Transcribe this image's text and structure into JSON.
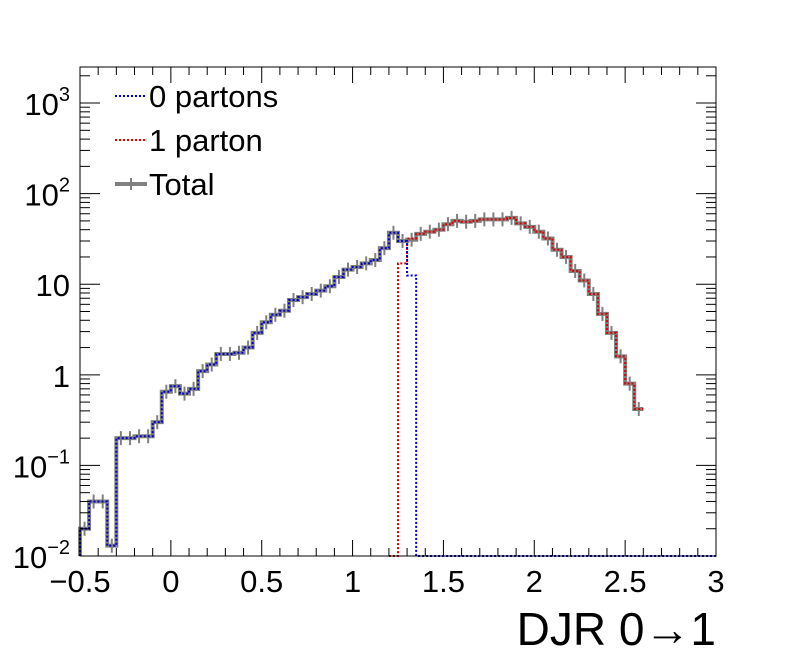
{
  "chart_data": {
    "type": "line",
    "title": "",
    "xlabel": "DJR 0→1",
    "ylabel": "",
    "xlim": [
      -0.5,
      3.0
    ],
    "ylim": [
      0.01,
      2500
    ],
    "yscale": "log",
    "grid": false,
    "legend_position": "top-left",
    "bin_width": 0.05,
    "x_ticks": [
      {
        "value": -0.5,
        "label": "−0.5"
      },
      {
        "value": 0,
        "label": "0"
      },
      {
        "value": 0.5,
        "label": "0.5"
      },
      {
        "value": 1,
        "label": "1"
      },
      {
        "value": 1.5,
        "label": "1.5"
      },
      {
        "value": 2,
        "label": "2"
      },
      {
        "value": 2.5,
        "label": "2.5"
      },
      {
        "value": 3,
        "label": "3"
      }
    ],
    "y_ticks": [
      {
        "value": 0.01,
        "base": "10",
        "exp": "−2"
      },
      {
        "value": 0.1,
        "base": "10",
        "exp": "−1"
      },
      {
        "value": 1,
        "base": "1",
        "exp": ""
      },
      {
        "value": 10,
        "base": "10",
        "exp": ""
      },
      {
        "value": 100,
        "base": "10",
        "exp": "2"
      },
      {
        "value": 1000,
        "base": "10",
        "exp": "3"
      }
    ],
    "series": [
      {
        "name": "0 partons",
        "color": "#0000cc",
        "style": "dotted",
        "x_start": -0.5,
        "values": [
          0.02,
          0.04,
          0.04,
          0.013,
          0.2,
          0.2,
          0.21,
          0.21,
          0.3,
          0.65,
          0.75,
          0.62,
          0.7,
          1.1,
          1.3,
          1.7,
          1.7,
          1.75,
          2.0,
          2.9,
          3.8,
          4.6,
          5.1,
          6.7,
          7.2,
          7.8,
          8.5,
          9.5,
          12.0,
          14.5,
          15.5,
          17.0,
          18.5,
          25.0,
          37.0,
          30.0,
          12.5,
          0.01,
          0.01,
          0.01,
          0.01,
          0.01,
          0.01,
          0.01,
          0.01,
          0.01,
          0.01,
          0.01,
          0.01,
          0.01,
          0.01,
          0.01,
          0.01,
          0.01,
          0.01,
          0.01,
          0.01,
          0.01,
          0.01,
          0.01,
          0.01,
          0.01,
          0.01,
          0.01,
          0.01,
          0.01,
          0.01,
          0.01,
          0.01,
          0.01
        ]
      },
      {
        "name": "1 parton",
        "color": "#dd0000",
        "style": "dotted",
        "x_start": 1.2,
        "values": [
          0.01,
          17.0,
          32.0,
          36.0,
          38.0,
          40.0,
          46.0,
          50.0,
          49.0,
          50.0,
          52.0,
          52.0,
          52.0,
          54.0,
          47.0,
          43.0,
          38.0,
          32.0,
          24.0,
          20.0,
          14.0,
          11.0,
          7.8,
          4.7,
          2.9,
          1.6,
          0.8,
          0.42
        ]
      },
      {
        "name": "Total",
        "color": "#808080",
        "style": "solid",
        "x_start": -0.5,
        "values": [
          0.02,
          0.04,
          0.04,
          0.013,
          0.2,
          0.2,
          0.21,
          0.21,
          0.3,
          0.65,
          0.75,
          0.62,
          0.7,
          1.1,
          1.3,
          1.7,
          1.7,
          1.75,
          2.0,
          2.9,
          3.8,
          4.6,
          5.1,
          6.7,
          7.2,
          7.8,
          8.5,
          9.5,
          12.0,
          14.5,
          15.5,
          17.0,
          18.5,
          25.0,
          37.0,
          30.0,
          31.0,
          36.0,
          38.0,
          40.0,
          46.0,
          50.0,
          49.0,
          50.0,
          52.0,
          52.0,
          52.0,
          54.0,
          47.0,
          43.0,
          38.0,
          32.0,
          24.0,
          20.0,
          14.0,
          11.0,
          7.8,
          4.7,
          2.9,
          1.6,
          0.8,
          0.42
        ]
      }
    ]
  }
}
